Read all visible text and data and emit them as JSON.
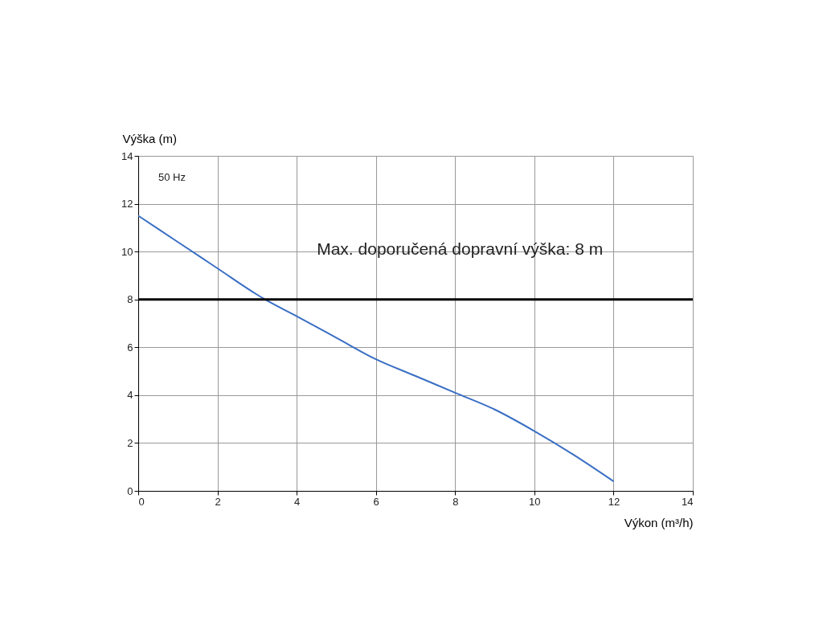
{
  "chart_data": {
    "type": "line",
    "xlabel": "Výkon (m³/h)",
    "ylabel": "Výška (m)",
    "x": [
      0,
      1,
      2,
      3,
      3.2,
      4,
      5,
      6,
      7,
      8,
      9,
      10,
      11,
      12
    ],
    "series": [
      {
        "color": "#3a6fc4",
        "values": [
          11.5,
          10.4,
          9.3,
          8.2,
          8.0,
          7.3,
          6.4,
          5.5,
          4.8,
          4.1,
          3.4,
          2.5,
          1.5,
          0.4
        ]
      }
    ],
    "xlim": [
      0,
      14
    ],
    "xticks": [
      0,
      2,
      4,
      6,
      8,
      10,
      12,
      14
    ],
    "ylim": [
      0,
      14
    ],
    "yticks": [
      0,
      2,
      4,
      6,
      8,
      10,
      12,
      14
    ],
    "grid": true,
    "marker": "none",
    "line_style": "solid",
    "ref_lines": [
      {
        "axis": "y",
        "value": 8,
        "label": "Max. doporučená dopravní výška: 8 m",
        "color": "#000000"
      }
    ],
    "annotations": [
      "50 Hz"
    ]
  }
}
